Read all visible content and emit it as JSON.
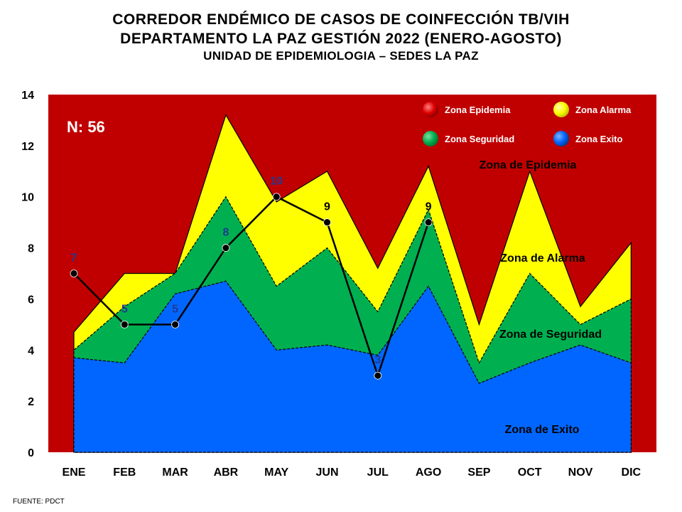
{
  "header": {
    "title1": "CORREDOR ENDÉMICO DE CASOS DE COINFECCIÓN TB/VIH",
    "title2": "DEPARTAMENTO  LA PAZ GESTIÓN 2022 (ENERO-AGOSTO)",
    "title3": "UNIDAD DE EPIDEMIOLOGIA – SEDES LA PAZ"
  },
  "source": "FUENTE:   PDCT",
  "chart_data": {
    "type": "area",
    "categories": [
      "ENE",
      "FEB",
      "MAR",
      "ABR",
      "MAY",
      "JUN",
      "JUL",
      "AGO",
      "SEP",
      "OCT",
      "NOV",
      "DIC"
    ],
    "ylim": [
      0,
      14
    ],
    "yticks": [
      0,
      2,
      4,
      6,
      8,
      10,
      12,
      14
    ],
    "grid": false,
    "n_label": "N: 56",
    "series": [
      {
        "name": "Zona Exito",
        "color": "#0066ff",
        "values": [
          3.7,
          3.5,
          6.2,
          6.7,
          4.0,
          4.2,
          3.8,
          6.5,
          2.7,
          3.5,
          4.2,
          3.5
        ]
      },
      {
        "name": "Zona Seguridad",
        "color": "#00b050",
        "values": [
          4.0,
          5.7,
          7.0,
          10.0,
          6.5,
          8.0,
          5.5,
          9.5,
          3.5,
          7.0,
          5.0,
          6.0
        ]
      },
      {
        "name": "Zona Alarma",
        "color": "#ffff00",
        "values": [
          4.7,
          7.0,
          7.0,
          13.2,
          9.8,
          11.0,
          7.2,
          11.2,
          5.0,
          11.0,
          5.7,
          8.2
        ]
      },
      {
        "name": "Zona Epidemia",
        "color": "#c00000",
        "values": [
          14,
          14,
          14,
          14,
          14,
          14,
          14,
          14,
          14,
          14,
          14,
          14
        ]
      }
    ],
    "cases": {
      "color": "#000000",
      "values": [
        7,
        5,
        5,
        8,
        10,
        9,
        3,
        9
      ],
      "labels": [
        "7",
        "5",
        "5",
        "8",
        "10",
        "9",
        "3",
        "9"
      ],
      "label_colors": [
        "#1f3a93",
        "#1f3a93",
        "#1f3a93",
        "#1f3a93",
        "#1f3a93",
        "#000000",
        "#1f3a93",
        "#000000"
      ]
    },
    "legend": {
      "position": "top-right",
      "items": [
        {
          "label": "Zona Epidemia",
          "color": "#ff0000"
        },
        {
          "label": "Zona Alarma",
          "color": "#ffff00"
        },
        {
          "label": "Zona Seguridad",
          "color": "#00b050"
        },
        {
          "label": "Zona Exito",
          "color": "#0066ff"
        }
      ]
    },
    "zone_labels": [
      "Zona de Epidemia",
      "Zona de Alarma",
      "Zona de Seguridad",
      "Zona de Exito"
    ]
  }
}
